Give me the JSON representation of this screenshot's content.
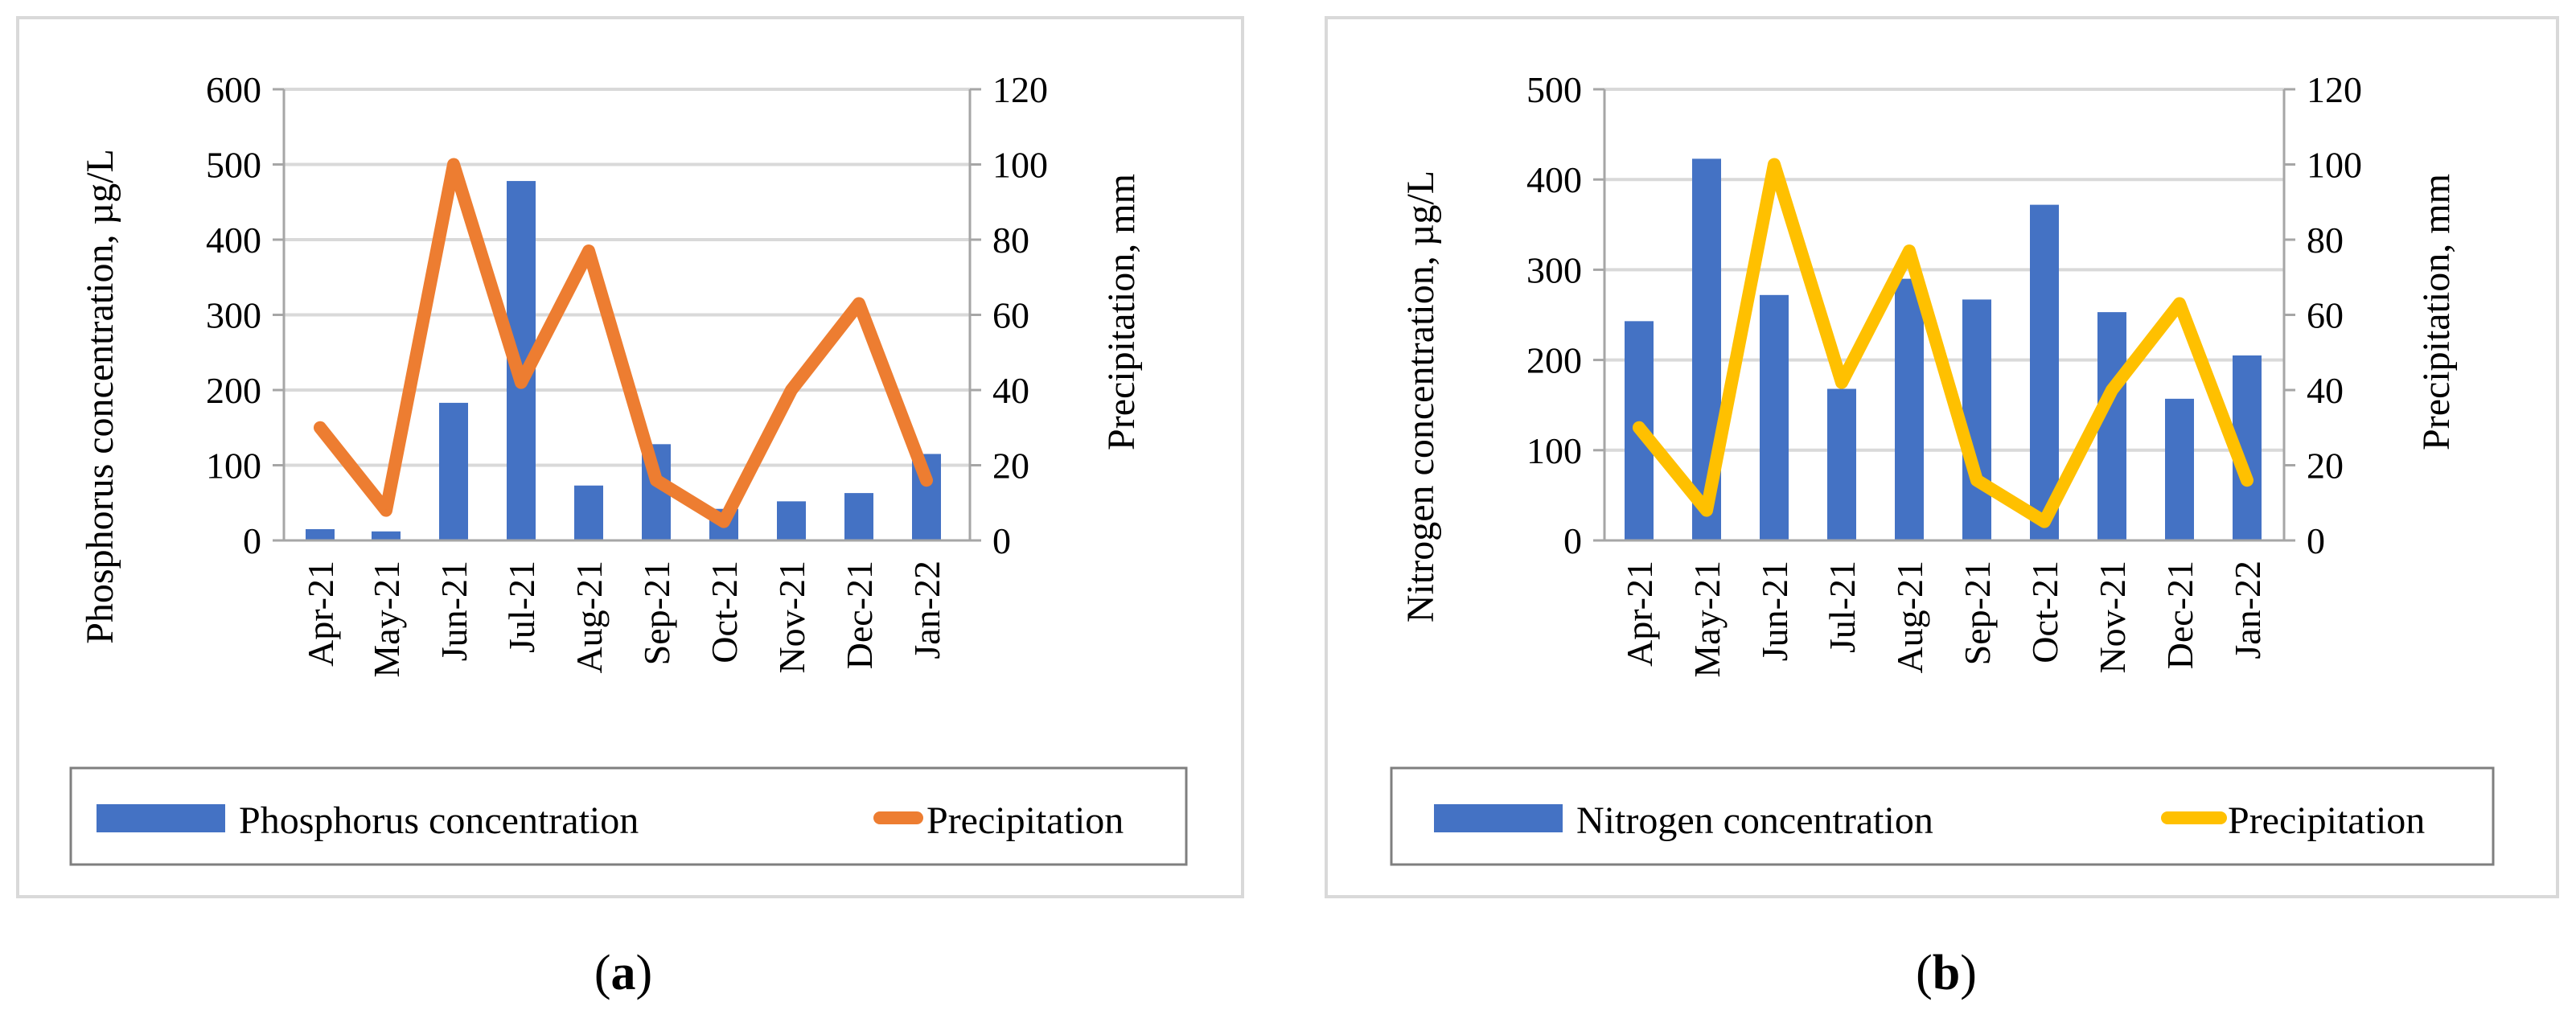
{
  "panels": [
    {
      "label_text": "(a)",
      "label_letter": "a",
      "chart_data": {
        "type": "bar+line",
        "categories": [
          "Apr-21",
          "May-21",
          "Jun-21",
          "Jul-21",
          "Aug-21",
          "Sep-21",
          "Oct-21",
          "Nov-21",
          "Dec-21",
          "Jan-22"
        ],
        "series": [
          {
            "name": "Phosphorus concentration",
            "type": "bar",
            "axis": "left",
            "color": "#4472C4",
            "values": [
              15,
              12,
              183,
              478,
              73,
              128,
              42,
              52,
              63,
              115
            ]
          },
          {
            "name": "Precipitation",
            "type": "line",
            "axis": "right",
            "color": "#ED7D31",
            "values": [
              30,
              8,
              100,
              42,
              77,
              16,
              5,
              40,
              63,
              16
            ]
          }
        ],
        "ylabel": "Phosphorus concentration, µg/L",
        "y2label": "Precipitation, mm",
        "ylim": [
          0,
          600
        ],
        "y2lim": [
          0,
          120
        ],
        "yticks": [
          0,
          100,
          200,
          300,
          400,
          500,
          600
        ],
        "y2ticks": [
          0,
          20,
          40,
          60,
          80,
          100,
          120
        ],
        "grid": true,
        "legend_position": "bottom"
      }
    },
    {
      "label_text": "(b)",
      "label_letter": "b",
      "chart_data": {
        "type": "bar+line",
        "categories": [
          "Apr-21",
          "May-21",
          "Jun-21",
          "Jul-21",
          "Aug-21",
          "Sep-21",
          "Oct-21",
          "Nov-21",
          "Dec-21",
          "Jan-22"
        ],
        "series": [
          {
            "name": "Nitrogen concentration",
            "type": "bar",
            "axis": "left",
            "color": "#4472C4",
            "values": [
              243,
              423,
              272,
              168,
              290,
              267,
              372,
              253,
              157,
              205
            ]
          },
          {
            "name": "Precipitation",
            "type": "line",
            "axis": "right",
            "color": "#FFC000",
            "values": [
              30,
              8,
              100,
              42,
              77,
              16,
              5,
              40,
              63,
              16
            ]
          }
        ],
        "ylabel": "Nitrogen concentration, µg/L",
        "y2label": "Precipitation, mm",
        "ylim": [
          0,
          500
        ],
        "y2lim": [
          0,
          120
        ],
        "yticks": [
          0,
          100,
          200,
          300,
          400,
          500
        ],
        "y2ticks": [
          0,
          20,
          40,
          60,
          80,
          100,
          120
        ],
        "grid": true,
        "legend_position": "bottom"
      }
    }
  ]
}
